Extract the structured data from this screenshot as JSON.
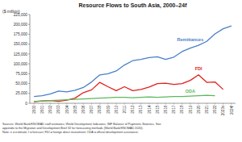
{
  "chart_data": {
    "type": "line",
    "title": "Resource Flows to South Asia, 2000–24f",
    "y_label": "($ million)",
    "categories": [
      "2000",
      "2001",
      "2002",
      "2003",
      "2004",
      "2005",
      "2006",
      "2007",
      "2008",
      "2009",
      "2010",
      "2011",
      "2012",
      "2013",
      "2014",
      "2015",
      "2016",
      "2017",
      "2018",
      "2019",
      "2020",
      "2021",
      "2022",
      "2023e",
      "2024f"
    ],
    "series": [
      {
        "name": "Remittances",
        "color": "#4a7fc9",
        "values": [
          17000,
          19000,
          24000,
          31000,
          29000,
          33000,
          40000,
          54000,
          72000,
          75000,
          82000,
          97000,
          108000,
          111000,
          116000,
          118000,
          111000,
          117000,
          131000,
          140000,
          147000,
          157000,
          176000,
          189000,
          196000
        ]
      },
      {
        "name": "FDI",
        "color": "#e0201b",
        "values": [
          4000,
          6000,
          7000,
          5000,
          8000,
          13000,
          27000,
          34000,
          53000,
          42000,
          32000,
          42000,
          32000,
          35000,
          41000,
          50000,
          51000,
          48000,
          50000,
          58000,
          72000,
          53000,
          54000,
          35000,
          null
        ]
      },
      {
        "name": "ODA",
        "color": "#5cb85c",
        "values": [
          5000,
          6000,
          7000,
          8000,
          9000,
          10000,
          11000,
          12000,
          13000,
          14000,
          15000,
          15000,
          14000,
          15000,
          16000,
          15000,
          16000,
          17000,
          17000,
          18000,
          19000,
          20000,
          19000,
          null,
          null
        ]
      }
    ],
    "ylim": [
      0,
      225000
    ],
    "yticks": [
      0,
      {
        "value": 25000,
        "label": "25,000"
      },
      {
        "value": 50000,
        "label": "50,000"
      },
      {
        "value": 75000,
        "label": "75,000"
      },
      {
        "value": 100000,
        "label": "100,000"
      },
      {
        "value": 125000,
        "label": "125,000"
      },
      {
        "value": 150000,
        "label": "150,000"
      },
      {
        "value": 175000,
        "label": "175,000"
      },
      {
        "value": 200000,
        "label": "200,000"
      },
      {
        "value": 225000,
        "label": "225,000"
      }
    ],
    "grid": false,
    "notes": [
      "Sources: World Bank/KNOMAD staff estimates; World Development Indicators; IMF Balance of Payments Statistics. See",
      "appendix to the Migration and Development Brief 32 for forecasting methods (World Bank/KNOMAD 2020).",
      "Note: e = estimate; f = forecast; FDI = foreign direct investment; ODA = official development assistance."
    ]
  }
}
